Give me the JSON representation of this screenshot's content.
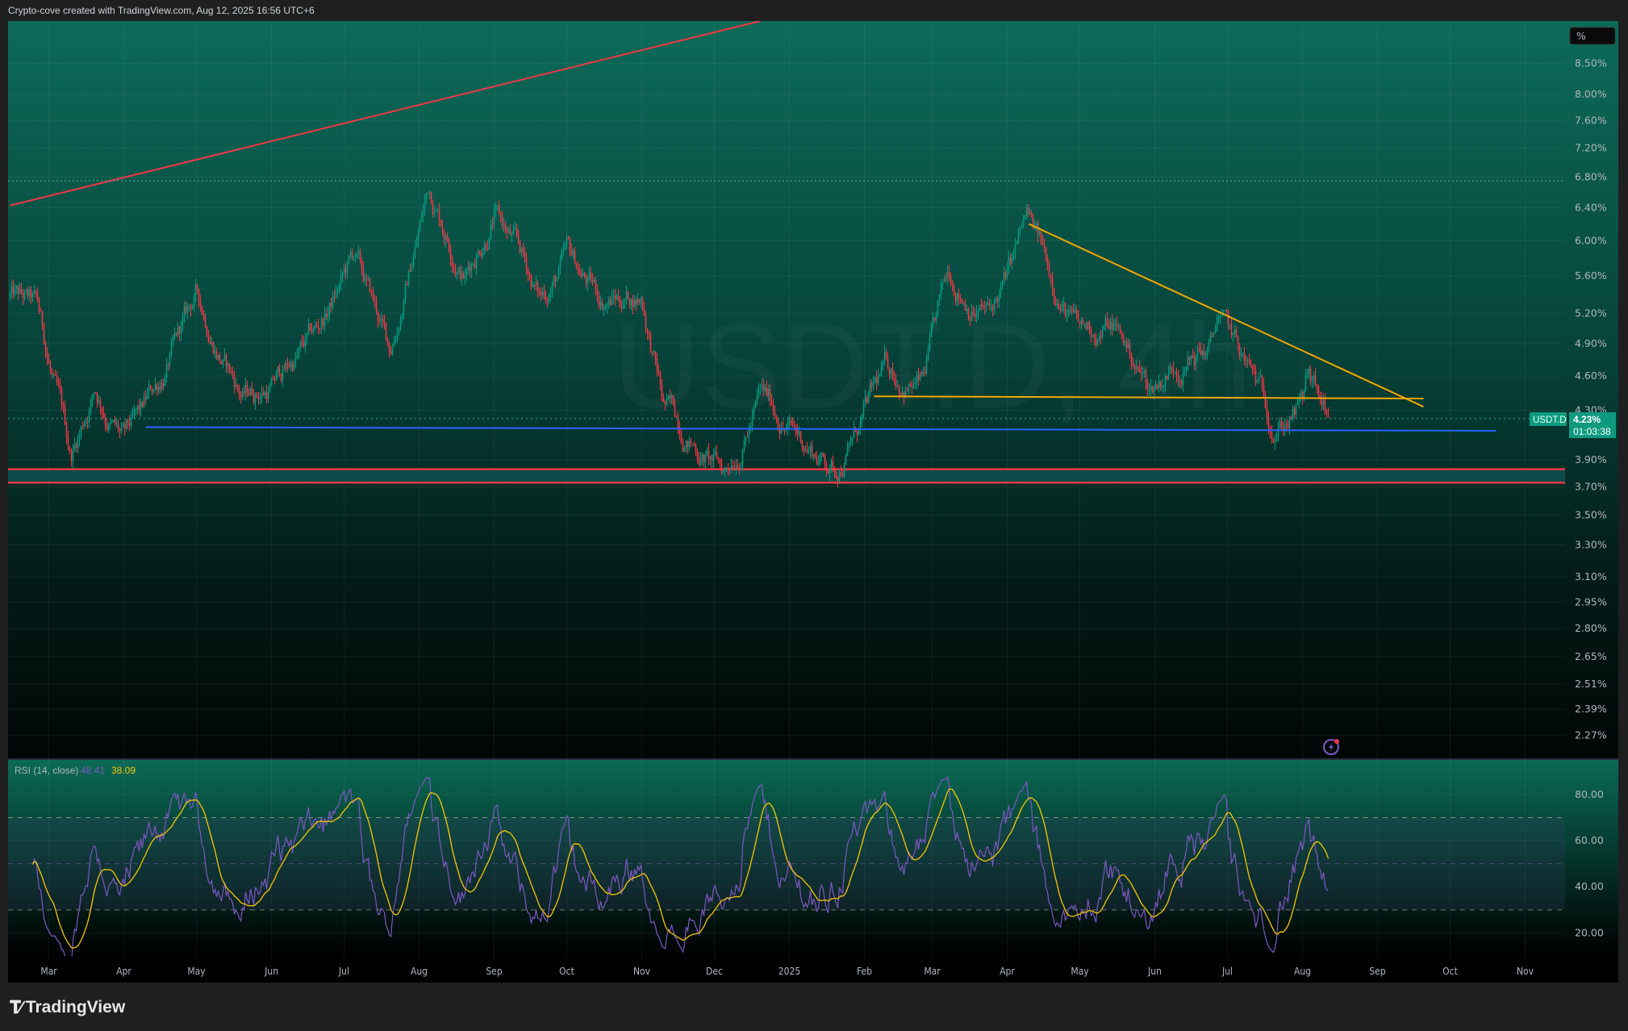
{
  "header": {
    "title": "Crypto-cove created with TradingView.com, Aug 12, 2025 16:56 UTC+6"
  },
  "footer": {
    "logo_text": "TradingView"
  },
  "scale_button": {
    "label": "%"
  },
  "chart_data": {
    "type": "candlestick",
    "symbol": "USDT.D",
    "watermark": "USDT.D, 4h",
    "scale": "log",
    "ylim": [
      2.17,
      9.24
    ],
    "y_ticks": [
      "8.50%",
      "8.00%",
      "7.60%",
      "7.20%",
      "6.80%",
      "6.40%",
      "6.00%",
      "5.60%",
      "5.20%",
      "4.90%",
      "4.60%",
      "4.30%",
      "3.90%",
      "3.70%",
      "3.50%",
      "3.30%",
      "3.10%",
      "2.95%",
      "2.80%",
      "2.65%",
      "2.51%",
      "2.39%",
      "2.27%"
    ],
    "y_tick_values": [
      8.5,
      8.0,
      7.6,
      7.2,
      6.8,
      6.4,
      6.0,
      5.6,
      5.2,
      4.9,
      4.6,
      4.3,
      3.9,
      3.7,
      3.5,
      3.3,
      3.1,
      2.95,
      2.8,
      2.65,
      2.51,
      2.39,
      2.27
    ],
    "x_ticks": [
      {
        "label": "Mar",
        "date": "2024-03-01"
      },
      {
        "label": "Apr",
        "date": "2024-04-01"
      },
      {
        "label": "May",
        "date": "2024-05-01"
      },
      {
        "label": "Jun",
        "date": "2024-06-01"
      },
      {
        "label": "Jul",
        "date": "2024-07-01"
      },
      {
        "label": "Aug",
        "date": "2024-08-01"
      },
      {
        "label": "Sep",
        "date": "2024-09-01"
      },
      {
        "label": "Oct",
        "date": "2024-10-01"
      },
      {
        "label": "Nov",
        "date": "2024-11-01"
      },
      {
        "label": "Dec",
        "date": "2024-12-01"
      },
      {
        "label": "2025",
        "date": "2025-01-01"
      },
      {
        "label": "Feb",
        "date": "2025-02-01"
      },
      {
        "label": "Mar",
        "date": "2025-03-01"
      },
      {
        "label": "Apr",
        "date": "2025-04-01"
      },
      {
        "label": "May",
        "date": "2025-05-01"
      },
      {
        "label": "Jun",
        "date": "2025-06-01"
      },
      {
        "label": "Jul",
        "date": "2025-07-01"
      },
      {
        "label": "Aug",
        "date": "2025-08-01"
      },
      {
        "label": "Sep",
        "date": "2025-09-01"
      },
      {
        "label": "Oct",
        "date": "2025-10-01"
      },
      {
        "label": "Nov",
        "date": "2025-11-01"
      }
    ],
    "price_path": [
      [
        "2024-02-14",
        5.38
      ],
      [
        "2024-02-25",
        5.2
      ],
      [
        "2024-03-10",
        3.88
      ],
      [
        "2024-03-20",
        4.52
      ],
      [
        "2024-04-01",
        4.04
      ],
      [
        "2024-04-08",
        4.17
      ],
      [
        "2024-04-25",
        4.98
      ],
      [
        "2024-05-01",
        5.33
      ],
      [
        "2024-05-20",
        4.43
      ],
      [
        "2024-06-01",
        4.52
      ],
      [
        "2024-06-20",
        4.98
      ],
      [
        "2024-07-05",
        5.78
      ],
      [
        "2024-07-20",
        4.8
      ],
      [
        "2024-08-05",
        6.67
      ],
      [
        "2024-08-20",
        5.67
      ],
      [
        "2024-09-01",
        6.4
      ],
      [
        "2024-09-10",
        5.9
      ],
      [
        "2024-09-20",
        5.33
      ],
      [
        "2024-10-01",
        5.78
      ],
      [
        "2024-10-15",
        5.33
      ],
      [
        "2024-11-01",
        5.42
      ],
      [
        "2024-11-10",
        4.34
      ],
      [
        "2024-11-25",
        4.0
      ],
      [
        "2024-12-05",
        3.8
      ],
      [
        "2024-12-20",
        4.43
      ],
      [
        "2025-01-05",
        4.08
      ],
      [
        "2025-01-20",
        3.84
      ],
      [
        "2025-02-01",
        4.26
      ],
      [
        "2025-02-10",
        4.61
      ],
      [
        "2025-02-25",
        4.52
      ],
      [
        "2025-03-08",
        5.55
      ],
      [
        "2025-03-25",
        5.2
      ],
      [
        "2025-04-01",
        5.55
      ],
      [
        "2025-04-09",
        6.2
      ],
      [
        "2025-04-20",
        5.55
      ],
      [
        "2025-05-01",
        4.98
      ],
      [
        "2025-05-15",
        5.08
      ],
      [
        "2025-05-30",
        4.48
      ],
      [
        "2025-06-10",
        4.75
      ],
      [
        "2025-06-25",
        4.89
      ],
      [
        "2025-06-27",
        5.2
      ],
      [
        "2025-07-05",
        4.8
      ],
      [
        "2025-07-20",
        4.21
      ],
      [
        "2025-08-01",
        4.34
      ],
      [
        "2025-08-03",
        4.57
      ],
      [
        "2025-08-10",
        4.26
      ],
      [
        "2025-08-12",
        4.23
      ]
    ],
    "last_price": {
      "symbol_label": "USDT.D",
      "value": "4.23%",
      "price": 4.23,
      "countdown": "01:03:38"
    },
    "drawings": [
      {
        "type": "trendline",
        "color": "#f23645",
        "from": [
          "2024-02-14",
          6.43
        ],
        "to": [
          "2024-12-20",
          9.24
        ]
      },
      {
        "type": "trendline",
        "color": "#f7a600",
        "from": [
          "2025-04-10",
          6.2
        ],
        "to": [
          "2025-09-20",
          4.33
        ]
      },
      {
        "type": "hline",
        "color": "#f7a600",
        "from": [
          "2025-02-05",
          4.42
        ],
        "to": [
          "2025-09-20",
          4.4
        ]
      },
      {
        "type": "hline",
        "color": "#2962ff",
        "from": [
          "2024-04-10",
          4.16
        ],
        "to": [
          "2025-10-20",
          4.13
        ]
      },
      {
        "type": "zone",
        "color": "#f23645",
        "fill": "#0a4a48",
        "top": 3.83,
        "bottom": 3.73
      },
      {
        "type": "dotted",
        "color": "#5fa89a",
        "price": 6.75
      }
    ],
    "up_color": "#089981",
    "down_color": "#f23645",
    "rsi": {
      "label": "RSI (14, close)",
      "value": "48.41",
      "ma_value": "38.09",
      "line_color": "#7e57c2",
      "ma_color": "#f7c600",
      "ylim": [
        10,
        95
      ],
      "bands": [
        70,
        50,
        30
      ],
      "y_ticks": [
        "80.00",
        "60.00",
        "40.00",
        "20.00"
      ],
      "y_tick_values": [
        80,
        60,
        40,
        20
      ]
    }
  }
}
